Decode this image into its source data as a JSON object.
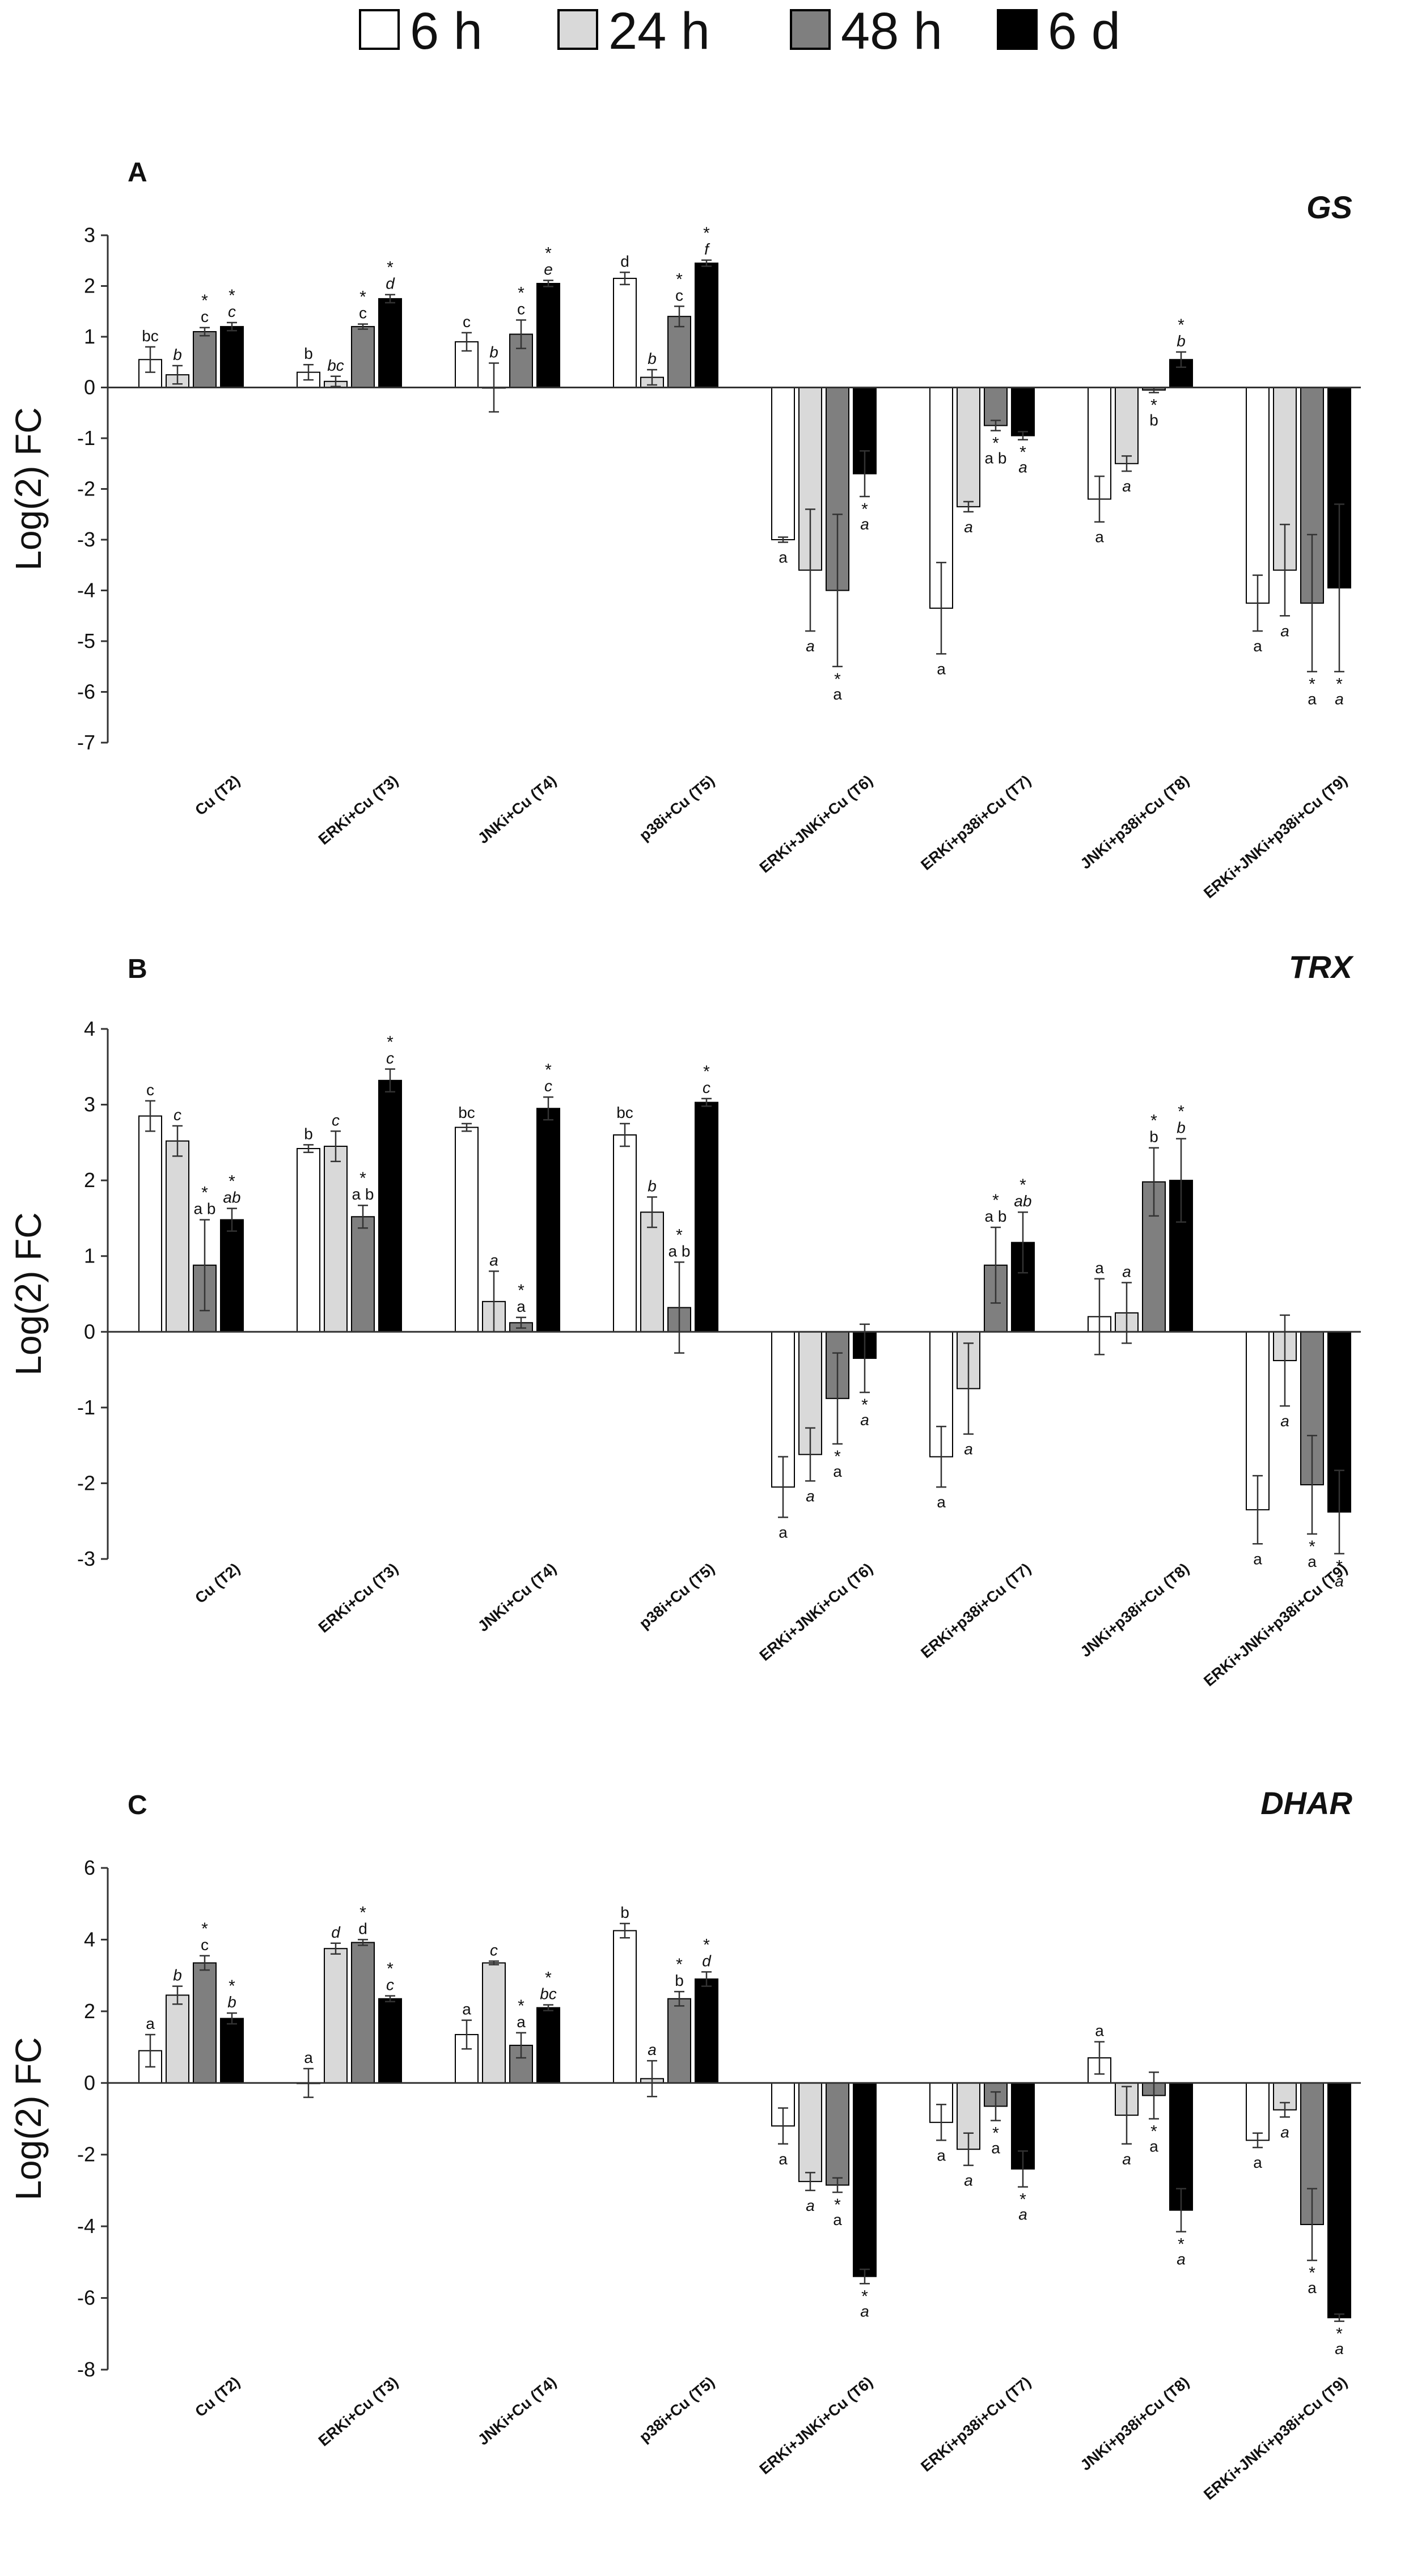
{
  "legend": [
    {
      "label": "6 h",
      "color": "#ffffff"
    },
    {
      "label": "24 h",
      "color": "#d9d9d9"
    },
    {
      "label": "48 h",
      "color": "#7f7f7f"
    },
    {
      "label": "6 d",
      "color": "#000000"
    }
  ],
  "chart_data": [
    {
      "type": "bar",
      "panel": "A",
      "title": "GS",
      "ylabel": "Log(2) FC",
      "ylim": [
        -7,
        3
      ],
      "yticks": [
        -7,
        -6,
        -5,
        -4,
        -3,
        -2,
        -1,
        0,
        1,
        2,
        3
      ],
      "categories": [
        "Cu (T2)",
        "ERKi+Cu (T3)",
        "JNKi+Cu (T4)",
        "p38i+Cu (T5)",
        "ERKi+JNKi+Cu (T6)",
        "ERKi+p38i+Cu (T7)",
        "JNKi+p38i+Cu (T8)",
        "ERKi+JNKi+p38i+Cu (T9)"
      ],
      "series": [
        {
          "name": "6 h",
          "values": [
            0.55,
            0.3,
            0.9,
            2.15,
            -3.0,
            -4.35,
            -2.2,
            -4.25
          ],
          "errors": [
            0.25,
            0.15,
            0.18,
            0.12,
            0.05,
            0.9,
            0.45,
            0.55
          ],
          "labels": [
            "bc",
            "b",
            "c",
            "d",
            "a",
            "a",
            "a",
            "a"
          ]
        },
        {
          "name": "24 h",
          "values": [
            0.25,
            0.12,
            0.0,
            0.2,
            -3.6,
            -2.35,
            -1.5,
            -3.6
          ],
          "errors": [
            0.18,
            0.1,
            0.48,
            0.15,
            1.2,
            0.1,
            0.15,
            0.9
          ],
          "labels": [
            "b",
            "bc",
            "b",
            "b",
            "a",
            "a",
            "a",
            "a"
          ]
        },
        {
          "name": "48 h",
          "values": [
            1.1,
            1.2,
            1.05,
            1.4,
            -4.0,
            -0.75,
            -0.05,
            -4.25
          ],
          "errors": [
            0.08,
            0.05,
            0.28,
            0.2,
            1.5,
            0.1,
            0.05,
            1.35
          ],
          "labels": [
            "* c",
            "* c",
            "* c",
            "* c",
            "* a",
            "* a b",
            "* b",
            "* a"
          ]
        },
        {
          "name": "6 d",
          "values": [
            1.2,
            1.75,
            2.05,
            2.45,
            -1.7,
            -0.95,
            0.55,
            -3.95
          ],
          "errors": [
            0.08,
            0.08,
            0.06,
            0.06,
            0.45,
            0.08,
            0.15,
            1.65
          ],
          "labels": [
            "* c",
            "* d",
            "* e",
            "* f",
            "* a",
            "* a",
            "* b",
            "* a"
          ]
        }
      ]
    },
    {
      "type": "bar",
      "panel": "B",
      "title": "TRX",
      "ylabel": "Log(2) FC",
      "ylim": [
        -3,
        4
      ],
      "yticks": [
        -3,
        -2,
        -1,
        0,
        1,
        2,
        3,
        4
      ],
      "categories": [
        "Cu (T2)",
        "ERKi+Cu (T3)",
        "JNKi+Cu (T4)",
        "p38i+Cu (T5)",
        "ERKi+JNKi+Cu (T6)",
        "ERKi+p38i+Cu (T7)",
        "JNKi+p38i+Cu (T8)",
        "ERKi+JNKi+p38i+Cu (T9)"
      ],
      "series": [
        {
          "name": "6 h",
          "values": [
            2.85,
            2.42,
            2.7,
            2.6,
            -2.05,
            -1.65,
            0.2,
            -2.35
          ],
          "errors": [
            0.2,
            0.05,
            0.05,
            0.15,
            0.4,
            0.4,
            0.5,
            0.45
          ],
          "labels": [
            "c",
            "b",
            "bc",
            "bc",
            "a",
            "a",
            "a",
            "a"
          ]
        },
        {
          "name": "24 h",
          "values": [
            2.52,
            2.45,
            0.4,
            1.58,
            -1.62,
            -0.75,
            0.25,
            -0.38
          ],
          "errors": [
            0.2,
            0.2,
            0.4,
            0.2,
            0.35,
            0.6,
            0.4,
            0.6
          ],
          "labels": [
            "c",
            "c",
            "a",
            "b",
            "a",
            "a",
            "a",
            "a"
          ]
        },
        {
          "name": "48 h",
          "values": [
            0.88,
            1.52,
            0.12,
            0.32,
            -0.88,
            0.88,
            1.98,
            -2.02
          ],
          "errors": [
            0.6,
            0.15,
            0.07,
            0.6,
            0.6,
            0.5,
            0.45,
            0.65
          ],
          "labels": [
            "* a b",
            "* a b",
            "* a",
            "* a b",
            "* a",
            "* a b",
            "* b",
            "* a"
          ]
        },
        {
          "name": "6 d",
          "values": [
            1.48,
            3.32,
            2.95,
            3.03,
            -0.35,
            1.18,
            2.0,
            -2.38
          ],
          "errors": [
            0.15,
            0.15,
            0.15,
            0.05,
            0.45,
            0.4,
            0.55,
            0.55
          ],
          "labels": [
            "* ab",
            "* c",
            "* c",
            "* c",
            "* a",
            "* ab",
            "* b",
            "* a"
          ]
        }
      ]
    },
    {
      "type": "bar",
      "panel": "C",
      "title": "DHAR",
      "ylabel": "Log(2) FC",
      "ylim": [
        -8,
        6
      ],
      "yticks": [
        -8,
        -6,
        -4,
        -2,
        0,
        2,
        4,
        6
      ],
      "categories": [
        "Cu (T2)",
        "ERKi+Cu (T3)",
        "JNKi+Cu (T4)",
        "p38i+Cu (T5)",
        "ERKi+JNKi+Cu (T6)",
        "ERKi+p38i+Cu (T7)",
        "JNKi+p38i+Cu (T8)",
        "ERKi+JNKi+p38i+Cu (T9)"
      ],
      "series": [
        {
          "name": "6 h",
          "values": [
            0.9,
            0.0,
            1.35,
            4.25,
            -1.2,
            -1.1,
            0.7,
            -1.6
          ],
          "errors": [
            0.45,
            0.4,
            0.4,
            0.2,
            0.5,
            0.5,
            0.45,
            0.2
          ],
          "labels": [
            "a",
            "a",
            "a",
            "b",
            "a",
            "a",
            "a",
            "a"
          ]
        },
        {
          "name": "24 h",
          "values": [
            2.45,
            3.75,
            3.35,
            0.12,
            -2.75,
            -1.85,
            -0.9,
            -0.75
          ],
          "errors": [
            0.25,
            0.15,
            0.05,
            0.5,
            0.25,
            0.45,
            0.8,
            0.2
          ],
          "labels": [
            "b",
            "d",
            "c",
            "a",
            "a",
            "a",
            "a",
            "a"
          ]
        },
        {
          "name": "48 h",
          "values": [
            3.35,
            3.92,
            1.05,
            2.35,
            -2.85,
            -0.65,
            -0.35,
            -3.95
          ],
          "errors": [
            0.2,
            0.08,
            0.35,
            0.2,
            0.2,
            0.4,
            0.65,
            1.0
          ],
          "labels": [
            "* c",
            "* d",
            "* a",
            "* b",
            "* a",
            "* a",
            "* a",
            "* a"
          ]
        },
        {
          "name": "6 d",
          "values": [
            1.8,
            2.35,
            2.1,
            2.9,
            -5.4,
            -2.4,
            -3.55,
            -6.55
          ],
          "errors": [
            0.15,
            0.08,
            0.08,
            0.2,
            0.2,
            0.5,
            0.6,
            0.1
          ],
          "labels": [
            "* b",
            "* c",
            "* bc",
            "* d",
            "* a",
            "* a",
            "* a",
            "* a"
          ]
        }
      ]
    }
  ]
}
